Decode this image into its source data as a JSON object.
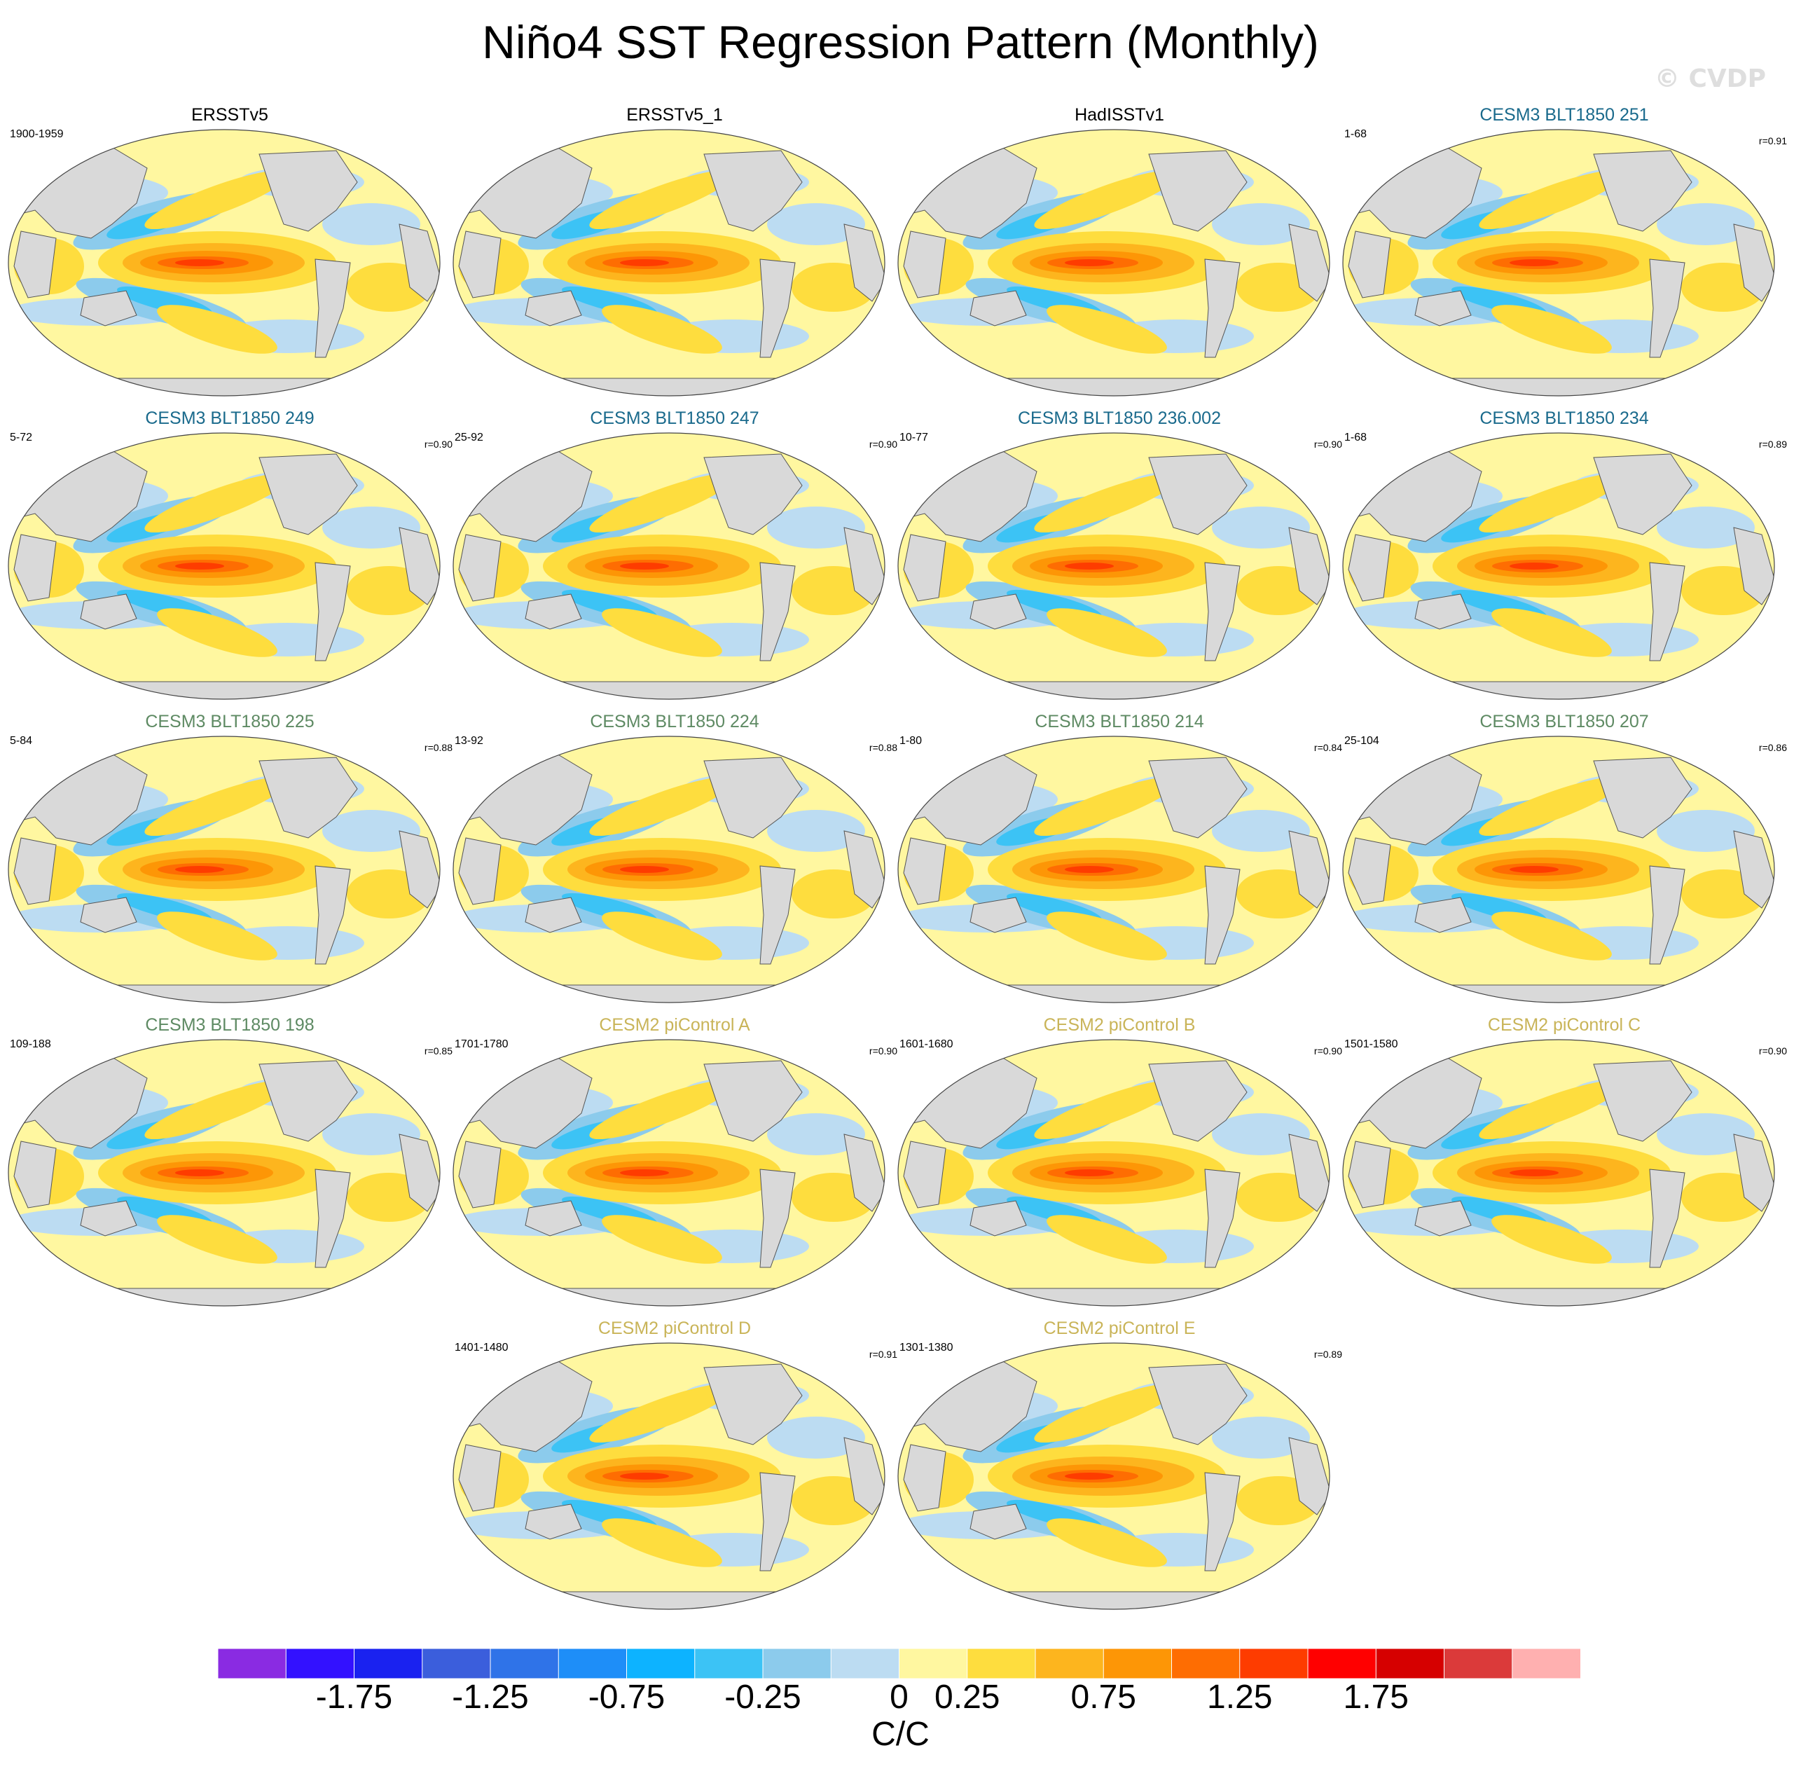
{
  "chart_data": {
    "type": "heatmap",
    "title": "Niño4 SST Regression Pattern (Monthly)",
    "watermark": "© CVDP",
    "units": "C/C",
    "colorbar": {
      "levels": [
        -2.0,
        -1.75,
        -1.5,
        -1.25,
        -1.0,
        -0.75,
        -0.5,
        -0.25,
        -0.1,
        0,
        0.1,
        0.25,
        0.5,
        0.75,
        1.0,
        1.25,
        1.5,
        1.75,
        2.0
      ],
      "tick_labels": [
        "-1.75",
        "-1.25",
        "-0.75",
        "-0.25",
        "0",
        "0.25",
        "0.75",
        "1.25",
        "1.75"
      ],
      "colors": [
        "#8a2be2",
        "#3311ff",
        "#1a22f0",
        "#3b5edc",
        "#2f73e8",
        "#1e8ef8",
        "#0db3ff",
        "#3cc3f5",
        "#8ccbec",
        "#bcdcf2",
        "#fff7a0",
        "#fedd3e",
        "#fdb51e",
        "#fd9606",
        "#fe6d02",
        "#fe3c00",
        "#ff0000",
        "#d60000",
        "#db3a3a",
        "#ffb0b0"
      ]
    },
    "panels": [
      {
        "title": "ERSSTv5",
        "period": "1900-1959",
        "corr": "",
        "title_color": "#000000"
      },
      {
        "title": "ERSSTv5_1",
        "period": "",
        "corr": "",
        "title_color": "#000000"
      },
      {
        "title": "HadISSTv1",
        "period": "",
        "corr": "",
        "title_color": "#000000"
      },
      {
        "title": "CESM3 BLT1850 251",
        "period": "1-68",
        "corr": "r=0.91",
        "title_color": "#1a6a8c"
      },
      {
        "title": "CESM3 BLT1850 249",
        "period": "5-72",
        "corr": "r=0.90",
        "title_color": "#1a6a8c"
      },
      {
        "title": "CESM3 BLT1850 247",
        "period": "25-92",
        "corr": "r=0.90",
        "title_color": "#1a6a8c"
      },
      {
        "title": "CESM3 BLT1850 236.002",
        "period": "10-77",
        "corr": "r=0.90",
        "title_color": "#1a6a8c"
      },
      {
        "title": "CESM3 BLT1850 234",
        "period": "1-68",
        "corr": "r=0.89",
        "title_color": "#1a6a8c"
      },
      {
        "title": "CESM3 BLT1850 225",
        "period": "5-84",
        "corr": "r=0.88",
        "title_color": "#5e8a63"
      },
      {
        "title": "CESM3 BLT1850 224",
        "period": "13-92",
        "corr": "r=0.88",
        "title_color": "#5e8a63"
      },
      {
        "title": "CESM3 BLT1850 214",
        "period": "1-80",
        "corr": "r=0.84",
        "title_color": "#5e8a63"
      },
      {
        "title": "CESM3 BLT1850 207",
        "period": "25-104",
        "corr": "r=0.86",
        "title_color": "#5e8a63"
      },
      {
        "title": "CESM3 BLT1850 198",
        "period": "109-188",
        "corr": "r=0.85",
        "title_color": "#5e8a63"
      },
      {
        "title": "CESM2 piControl A",
        "period": "1701-1780",
        "corr": "r=0.90",
        "title_color": "#c9b458"
      },
      {
        "title": "CESM2 piControl B",
        "period": "1601-1680",
        "corr": "r=0.90",
        "title_color": "#c9b458"
      },
      {
        "title": "CESM2 piControl C",
        "period": "1501-1580",
        "corr": "r=0.90",
        "title_color": "#c9b458"
      },
      {
        "title": "CESM2 piControl D",
        "period": "1401-1480",
        "corr": "r=0.91",
        "title_color": "#c9b458"
      },
      {
        "title": "CESM2 piControl E",
        "period": "1301-1380",
        "corr": "r=0.89",
        "title_color": "#c9b458"
      }
    ]
  }
}
